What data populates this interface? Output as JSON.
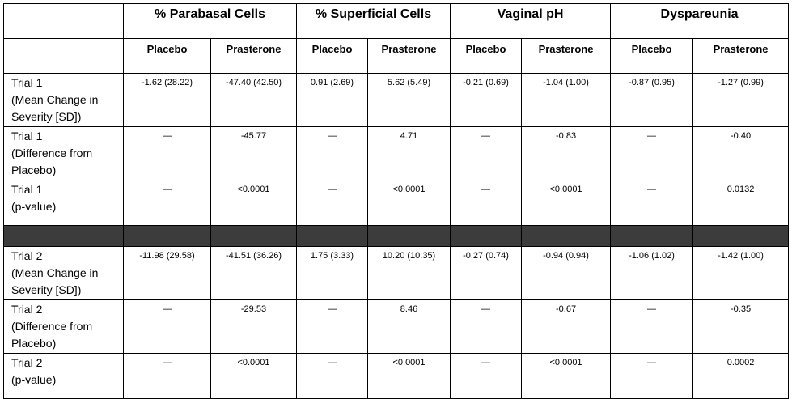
{
  "groups": [
    "% Parabasal Cells",
    "% Superficial Cells",
    "Vaginal pH",
    "Dyspareunia"
  ],
  "subheaders": [
    "Placebo",
    "Prasterone",
    "Placebo",
    "Prasterone",
    "Placebo",
    "Prasterone",
    "Placebo",
    "Prasterone"
  ],
  "rows": [
    {
      "label": [
        "Trial 1",
        "(Mean Change in",
        "Severity [SD])"
      ],
      "values": [
        "-1.62 (28.22)",
        "-47.40 (42.50)",
        "0.91 (2.69)",
        "5.62 (5.49)",
        "-0.21 (0.69)",
        "-1.04 (1.00)",
        "-0.87 (0.95)",
        "-1.27 (0.99)"
      ]
    },
    {
      "label": [
        "Trial 1",
        "(Difference from",
        "Placebo)"
      ],
      "values": [
        "—",
        "-45.77",
        "—",
        "4.71",
        "—",
        "-0.83",
        "—",
        "-0.40"
      ]
    },
    {
      "label": [
        "Trial 1",
        "(p-value)"
      ],
      "values": [
        "—",
        "<0.0001",
        "—",
        "<0.0001",
        "—",
        "<0.0001",
        "—",
        "0.0132"
      ]
    },
    {
      "label": [
        "Trial 2",
        "(Mean Change in",
        "Severity [SD])"
      ],
      "values": [
        "-11.98 (29.58)",
        "-41.51 (36.26)",
        "1.75 (3.33)",
        "10.20 (10.35)",
        "-0.27 (0.74)",
        "-0.94 (0.94)",
        "-1.06 (1.02)",
        "-1.42 (1.00)"
      ]
    },
    {
      "label": [
        "Trial 2",
        "(Difference from",
        "Placebo)"
      ],
      "values": [
        "—",
        "-29.53",
        "—",
        "8.46",
        "—",
        "-0.67",
        "—",
        "-0.35"
      ]
    },
    {
      "label": [
        "Trial 2",
        "(p-value)"
      ],
      "values": [
        "—",
        "<0.0001",
        "—",
        "<0.0001",
        "—",
        "<0.0001",
        "—",
        "0.0002"
      ]
    }
  ]
}
